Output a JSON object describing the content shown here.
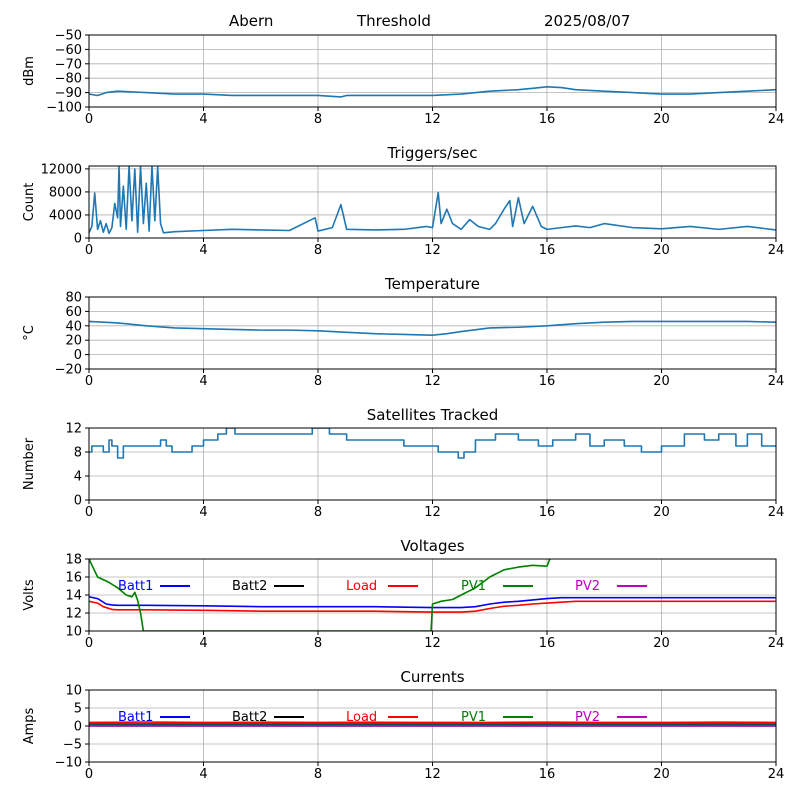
{
  "header": {
    "station": "Abern",
    "label": "Threshold",
    "date": "2025/08/07"
  },
  "chart_data": [
    {
      "id": "threshold",
      "type": "line",
      "title": "",
      "xlabel": "",
      "ylabel": "dBm",
      "xlim": [
        0,
        24
      ],
      "xticks": [
        0,
        4,
        8,
        12,
        16,
        20,
        24
      ],
      "ylim": [
        -100,
        -50
      ],
      "yticks": [
        -100,
        -90,
        -80,
        -70,
        -60,
        -50
      ],
      "grid": true,
      "series": [
        {
          "color": "#1f77b4",
          "x": [
            0,
            0.3,
            0.6,
            1,
            1.5,
            2,
            2.5,
            3,
            4,
            5,
            6,
            7,
            8,
            8.8,
            9,
            10,
            11,
            12,
            13,
            14,
            15,
            15.5,
            16,
            16.5,
            17,
            18,
            19,
            20,
            21,
            22,
            23,
            24
          ],
          "y": [
            -91,
            -92,
            -90,
            -89,
            -89.5,
            -90,
            -90.5,
            -91,
            -91,
            -92,
            -92,
            -92,
            -92,
            -93,
            -92,
            -92,
            -92,
            -92,
            -91,
            -89,
            -88,
            -87,
            -86,
            -86.5,
            -88,
            -89,
            -90,
            -91,
            -91,
            -90,
            -89,
            -88
          ]
        }
      ]
    },
    {
      "id": "triggers",
      "type": "line",
      "title": "Triggers/sec",
      "xlabel": "",
      "ylabel": "Count",
      "xlim": [
        0,
        24
      ],
      "xticks": [
        0,
        4,
        8,
        12,
        16,
        20,
        24
      ],
      "ylim": [
        0,
        12500
      ],
      "yticks": [
        0,
        4000,
        8000,
        12000
      ],
      "grid": true,
      "series": [
        {
          "color": "#1f77b4",
          "x": [
            0,
            0.1,
            0.2,
            0.3,
            0.4,
            0.5,
            0.6,
            0.7,
            0.8,
            0.9,
            1.0,
            1.05,
            1.1,
            1.2,
            1.3,
            1.4,
            1.5,
            1.6,
            1.7,
            1.8,
            1.9,
            2.0,
            2.1,
            2.2,
            2.3,
            2.4,
            2.5,
            2.6,
            3,
            4,
            5,
            6,
            7,
            7.9,
            8,
            8.5,
            8.8,
            9,
            10,
            11,
            11.8,
            12,
            12.2,
            12.3,
            12.5,
            12.7,
            13,
            13.3,
            13.6,
            14,
            14.2,
            14.5,
            14.7,
            14.8,
            15,
            15.2,
            15.5,
            15.8,
            16,
            16.5,
            17,
            17.5,
            18,
            19,
            20,
            21,
            22,
            23,
            24
          ],
          "y": [
            900,
            2000,
            7800,
            1500,
            3000,
            1000,
            2500,
            800,
            1800,
            6000,
            3500,
            12500,
            2000,
            9000,
            1500,
            12500,
            3000,
            12000,
            1000,
            12500,
            2500,
            9500,
            1200,
            12500,
            3000,
            12300,
            2500,
            900,
            1100,
            1300,
            1500,
            1400,
            1300,
            3500,
            1200,
            1800,
            5800,
            1500,
            1400,
            1500,
            2000,
            1800,
            7900,
            2500,
            5000,
            2500,
            1500,
            3200,
            2000,
            1500,
            2500,
            5000,
            6500,
            2000,
            7000,
            2500,
            5500,
            2000,
            1500,
            1800,
            2100,
            1800,
            2500,
            1800,
            1600,
            2000,
            1500,
            2000,
            1400
          ]
        }
      ]
    },
    {
      "id": "temperature",
      "type": "line",
      "title": "Temperature",
      "xlabel": "",
      "ylabel": "°C",
      "xlim": [
        0,
        24
      ],
      "xticks": [
        0,
        4,
        8,
        12,
        16,
        20,
        24
      ],
      "ylim": [
        -20,
        80
      ],
      "yticks": [
        -20,
        0,
        20,
        40,
        60,
        80
      ],
      "grid": true,
      "series": [
        {
          "color": "#1f77b4",
          "x": [
            0,
            1,
            2,
            3,
            4,
            5,
            6,
            7,
            8,
            9,
            10,
            11,
            12,
            12.5,
            13,
            14,
            15,
            16,
            17,
            18,
            19,
            20,
            21,
            22,
            23,
            24
          ],
          "y": [
            46,
            44,
            40,
            37,
            36,
            35,
            34,
            34,
            33,
            31,
            29,
            28,
            27,
            29,
            32,
            37,
            38,
            40,
            43,
            45,
            46,
            46,
            46,
            46,
            46,
            45
          ]
        }
      ]
    },
    {
      "id": "satellites",
      "type": "line",
      "title": "Satellites Tracked",
      "xlabel": "",
      "ylabel": "Number",
      "xlim": [
        0,
        24
      ],
      "xticks": [
        0,
        4,
        8,
        12,
        16,
        20,
        24
      ],
      "ylim": [
        0,
        12
      ],
      "yticks": [
        0,
        4,
        8,
        12
      ],
      "grid": true,
      "series": [
        {
          "color": "#1f77b4",
          "step": true,
          "x": [
            0,
            0.1,
            0.5,
            0.7,
            0.8,
            1.0,
            1.2,
            2.5,
            2.7,
            2.9,
            3.6,
            4.0,
            4.5,
            4.8,
            5.1,
            5.4,
            5.8,
            6.5,
            7.0,
            7.8,
            8.4,
            9.0,
            10.0,
            10.5,
            11.0,
            11.8,
            12.2,
            12.9,
            13.1,
            13.5,
            14.2,
            15.0,
            15.7,
            16.2,
            17.0,
            17.5,
            18.0,
            18.7,
            19.3,
            20.0,
            20.8,
            21.5,
            22.0,
            22.6,
            23.0,
            23.5,
            24
          ],
          "y": [
            8,
            9,
            8,
            10,
            9,
            7,
            9,
            10,
            9,
            8,
            9,
            10,
            11,
            12,
            11,
            11,
            11,
            11,
            11,
            12,
            11,
            10,
            10,
            10,
            9,
            9,
            8,
            7,
            8,
            10,
            11,
            10,
            9,
            10,
            11,
            9,
            10,
            9,
            8,
            9,
            11,
            10,
            11,
            9,
            11,
            9,
            9
          ]
        }
      ]
    },
    {
      "id": "voltages",
      "type": "line",
      "title": "Voltages",
      "xlabel": "",
      "ylabel": "Volts",
      "xlim": [
        0,
        24
      ],
      "xticks": [
        0,
        4,
        8,
        12,
        16,
        20,
        24
      ],
      "ylim": [
        10,
        18
      ],
      "yticks": [
        10,
        12,
        14,
        16,
        18
      ],
      "grid": true,
      "legend": "upper",
      "series": [
        {
          "name": "Batt1",
          "color": "#0000ff",
          "x": [
            0,
            0.3,
            0.6,
            0.8,
            1,
            2,
            4,
            6,
            8,
            10,
            12,
            13,
            13.5,
            14,
            14.5,
            15,
            15.5,
            16,
            16.5,
            17,
            20,
            24
          ],
          "y": [
            13.8,
            13.6,
            13.0,
            12.9,
            12.85,
            12.85,
            12.8,
            12.7,
            12.7,
            12.7,
            12.6,
            12.6,
            12.7,
            13.0,
            13.2,
            13.3,
            13.45,
            13.6,
            13.7,
            13.7,
            13.7,
            13.7
          ]
        },
        {
          "name": "Batt2",
          "color": "#000000",
          "x": [],
          "y": []
        },
        {
          "name": "Load",
          "color": "#ff0000",
          "x": [
            0,
            0.3,
            0.5,
            0.8,
            1,
            2,
            4,
            6,
            8,
            10,
            12,
            13,
            13.5,
            14,
            14.5,
            15,
            15.5,
            16,
            16.5,
            17,
            20,
            24
          ],
          "y": [
            13.3,
            13.1,
            12.7,
            12.4,
            12.35,
            12.35,
            12.3,
            12.2,
            12.2,
            12.2,
            12.1,
            12.1,
            12.2,
            12.5,
            12.75,
            12.85,
            13.0,
            13.1,
            13.2,
            13.3,
            13.3,
            13.3
          ]
        },
        {
          "name": "PV1",
          "color": "#008000",
          "x": [
            0,
            0.3,
            0.7,
            1.0,
            1.3,
            1.5,
            1.6,
            1.7,
            1.8,
            1.9,
            11.95,
            12.0,
            12.3,
            12.7,
            13.0,
            13.5,
            14.0,
            14.5,
            15.0,
            15.5,
            16.0,
            16.1
          ],
          "y": [
            18,
            16,
            15.4,
            14.8,
            14.0,
            13.8,
            14.3,
            13.4,
            12.0,
            10.0,
            10.0,
            13.0,
            13.3,
            13.5,
            14.0,
            14.8,
            16.0,
            16.8,
            17.1,
            17.3,
            17.2,
            18.0
          ]
        },
        {
          "name": "PV2",
          "color": "#bf00bf",
          "x": [],
          "y": []
        }
      ]
    },
    {
      "id": "currents",
      "type": "line",
      "title": "Currents",
      "xlabel": "",
      "ylabel": "Amps",
      "xlim": [
        0,
        24
      ],
      "xticks": [
        0,
        4,
        8,
        12,
        16,
        20,
        24
      ],
      "ylim": [
        -10,
        10
      ],
      "yticks": [
        -10,
        -5,
        0,
        5,
        10
      ],
      "grid": true,
      "legend": "upper",
      "series": [
        {
          "name": "Batt1",
          "color": "#0000ff",
          "x": [
            0,
            24
          ],
          "y": [
            0.3,
            0.3
          ]
        },
        {
          "name": "Batt2",
          "color": "#000000",
          "x": [
            0,
            24
          ],
          "y": [
            0.0,
            0.0
          ]
        },
        {
          "name": "Load",
          "color": "#ff0000",
          "x": [
            0,
            2,
            4,
            6,
            8,
            10,
            12,
            14,
            16,
            18,
            20,
            22,
            24
          ],
          "y": [
            1.0,
            1.1,
            1.0,
            1.05,
            1.0,
            1.05,
            1.0,
            1.0,
            1.05,
            1.0,
            1.0,
            1.05,
            1.0
          ]
        },
        {
          "name": "PV1",
          "color": "#008000",
          "x": [
            0,
            24
          ],
          "y": [
            0.6,
            0.6
          ]
        },
        {
          "name": "PV2",
          "color": "#bf00bf",
          "x": [
            0,
            24
          ],
          "y": [
            0.05,
            0.05
          ]
        }
      ]
    }
  ]
}
